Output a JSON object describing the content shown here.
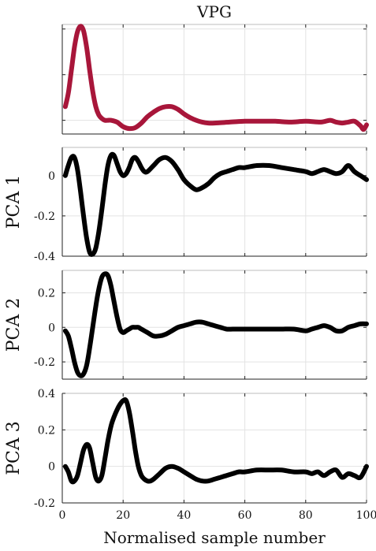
{
  "chart_data": [
    {
      "type": "line",
      "title": "VPG",
      "ylabel": "",
      "xlabel": "",
      "xlim": [
        0,
        100
      ],
      "ylim": [
        -0.15,
        1.05
      ],
      "yticks": [
        0,
        0.5,
        1
      ],
      "ytick_labels": [],
      "xticks": [
        0,
        20,
        40,
        60,
        80,
        100
      ],
      "xtick_labels": [],
      "grid": true,
      "series": [
        {
          "color": "#a8163a",
          "x": [
            1,
            2,
            3,
            4,
            5,
            6,
            7,
            8,
            9,
            10,
            11,
            12,
            13,
            14,
            15,
            16,
            18,
            20,
            22,
            24,
            26,
            28,
            30,
            32,
            34,
            36,
            38,
            40,
            42,
            44,
            46,
            48,
            50,
            55,
            60,
            65,
            70,
            75,
            80,
            85,
            88,
            90,
            92,
            94,
            96,
            98,
            99,
            100
          ],
          "y": [
            0.15,
            0.3,
            0.55,
            0.8,
            0.97,
            1.03,
            0.98,
            0.8,
            0.55,
            0.32,
            0.15,
            0.06,
            0.02,
            0.0,
            0.0,
            0.0,
            -0.02,
            -0.07,
            -0.09,
            -0.08,
            -0.03,
            0.04,
            0.09,
            0.13,
            0.15,
            0.15,
            0.12,
            0.07,
            0.03,
            0.0,
            -0.02,
            -0.03,
            -0.03,
            -0.02,
            -0.01,
            -0.01,
            -0.01,
            -0.02,
            -0.01,
            -0.02,
            0.0,
            -0.02,
            -0.03,
            -0.02,
            -0.01,
            -0.06,
            -0.1,
            -0.05
          ]
        }
      ]
    },
    {
      "type": "line",
      "title": "",
      "ylabel": "PCA 1",
      "xlabel": "",
      "xlim": [
        0,
        100
      ],
      "ylim": [
        -0.4,
        0.14
      ],
      "yticks": [
        0,
        -0.2,
        -0.4
      ],
      "ytick_labels": [
        "0",
        "-0.2",
        "-0.4"
      ],
      "xticks": [
        0,
        20,
        40,
        60,
        80,
        100
      ],
      "xtick_labels": [],
      "grid": true,
      "series": [
        {
          "color": "#000000",
          "x": [
            1,
            2,
            3,
            4,
            5,
            6,
            7,
            8,
            9,
            10,
            11,
            12,
            13,
            14,
            15,
            16,
            17,
            18,
            19,
            20,
            21,
            22,
            23,
            24,
            25,
            26,
            27,
            28,
            30,
            32,
            34,
            36,
            38,
            40,
            42,
            44,
            46,
            48,
            50,
            52,
            54,
            56,
            58,
            60,
            64,
            68,
            72,
            76,
            80,
            82,
            84,
            86,
            88,
            90,
            92,
            94,
            96,
            98,
            100
          ],
          "y": [
            0.0,
            0.05,
            0.09,
            0.09,
            0.03,
            -0.08,
            -0.2,
            -0.31,
            -0.38,
            -0.39,
            -0.36,
            -0.28,
            -0.17,
            -0.05,
            0.05,
            0.1,
            0.1,
            0.06,
            0.02,
            0.0,
            0.01,
            0.04,
            0.08,
            0.09,
            0.07,
            0.04,
            0.02,
            0.02,
            0.05,
            0.08,
            0.09,
            0.07,
            0.03,
            -0.02,
            -0.05,
            -0.07,
            -0.06,
            -0.04,
            -0.01,
            0.01,
            0.02,
            0.03,
            0.04,
            0.04,
            0.05,
            0.05,
            0.04,
            0.03,
            0.02,
            0.01,
            0.02,
            0.03,
            0.02,
            0.01,
            0.02,
            0.05,
            0.02,
            0.0,
            -0.02
          ]
        }
      ]
    },
    {
      "type": "line",
      "title": "",
      "ylabel": "PCA 2",
      "xlabel": "",
      "xlim": [
        0,
        100
      ],
      "ylim": [
        -0.3,
        0.33
      ],
      "yticks": [
        0.2,
        0,
        -0.2
      ],
      "ytick_labels": [
        "0.2",
        "0",
        "-0.2"
      ],
      "xticks": [
        0,
        20,
        40,
        60,
        80,
        100
      ],
      "xtick_labels": [],
      "grid": true,
      "series": [
        {
          "color": "#000000",
          "x": [
            1,
            2,
            3,
            4,
            5,
            6,
            7,
            8,
            9,
            10,
            11,
            12,
            13,
            14,
            15,
            16,
            17,
            18,
            19,
            20,
            21,
            22,
            23,
            24,
            25,
            26,
            28,
            30,
            32,
            34,
            36,
            38,
            40,
            42,
            44,
            46,
            48,
            50,
            52,
            54,
            56,
            58,
            60,
            64,
            68,
            72,
            76,
            80,
            82,
            84,
            86,
            88,
            90,
            92,
            94,
            96,
            98,
            100
          ],
          "y": [
            -0.02,
            -0.05,
            -0.12,
            -0.2,
            -0.26,
            -0.28,
            -0.27,
            -0.22,
            -0.12,
            0.0,
            0.12,
            0.22,
            0.29,
            0.31,
            0.3,
            0.24,
            0.15,
            0.06,
            -0.01,
            -0.03,
            -0.02,
            -0.01,
            0.0,
            0.0,
            0.0,
            -0.01,
            -0.03,
            -0.05,
            -0.05,
            -0.04,
            -0.02,
            0.0,
            0.01,
            0.02,
            0.03,
            0.03,
            0.02,
            0.01,
            0.0,
            -0.01,
            -0.01,
            -0.01,
            -0.01,
            -0.01,
            -0.01,
            -0.01,
            -0.01,
            -0.02,
            -0.01,
            0.0,
            0.01,
            0.0,
            -0.02,
            -0.02,
            0.0,
            0.01,
            0.02,
            0.02
          ]
        }
      ]
    },
    {
      "type": "line",
      "title": "",
      "ylabel": "PCA 3",
      "xlabel": "Normalised sample number",
      "xlim": [
        0,
        100
      ],
      "ylim": [
        -0.2,
        0.4
      ],
      "yticks": [
        0.4,
        0.2,
        0,
        -0.2
      ],
      "ytick_labels": [
        "0.4",
        "0.2",
        "0",
        "-0.2"
      ],
      "xticks": [
        0,
        20,
        40,
        60,
        80,
        100
      ],
      "xtick_labels": [
        "0",
        "20",
        "40",
        "60",
        "80",
        "100"
      ],
      "grid": true,
      "series": [
        {
          "color": "#000000",
          "x": [
            1,
            2,
            3,
            4,
            5,
            6,
            7,
            8,
            9,
            10,
            11,
            12,
            13,
            14,
            15,
            16,
            17,
            18,
            19,
            20,
            21,
            22,
            23,
            24,
            25,
            26,
            27,
            28,
            29,
            30,
            32,
            34,
            36,
            38,
            40,
            42,
            44,
            46,
            48,
            50,
            52,
            54,
            56,
            58,
            60,
            64,
            68,
            72,
            76,
            80,
            82,
            84,
            86,
            88,
            90,
            92,
            94,
            96,
            98,
            100
          ],
          "y": [
            0.0,
            -0.03,
            -0.08,
            -0.08,
            -0.05,
            0.02,
            0.09,
            0.12,
            0.1,
            0.02,
            -0.06,
            -0.08,
            -0.05,
            0.04,
            0.14,
            0.22,
            0.27,
            0.31,
            0.34,
            0.36,
            0.36,
            0.3,
            0.2,
            0.09,
            0.0,
            -0.05,
            -0.07,
            -0.08,
            -0.08,
            -0.07,
            -0.04,
            -0.01,
            0.0,
            -0.01,
            -0.03,
            -0.05,
            -0.07,
            -0.08,
            -0.08,
            -0.07,
            -0.06,
            -0.05,
            -0.04,
            -0.03,
            -0.03,
            -0.02,
            -0.02,
            -0.02,
            -0.03,
            -0.03,
            -0.04,
            -0.03,
            -0.05,
            -0.03,
            -0.02,
            -0.06,
            -0.04,
            -0.05,
            -0.06,
            0.0
          ]
        }
      ]
    }
  ]
}
